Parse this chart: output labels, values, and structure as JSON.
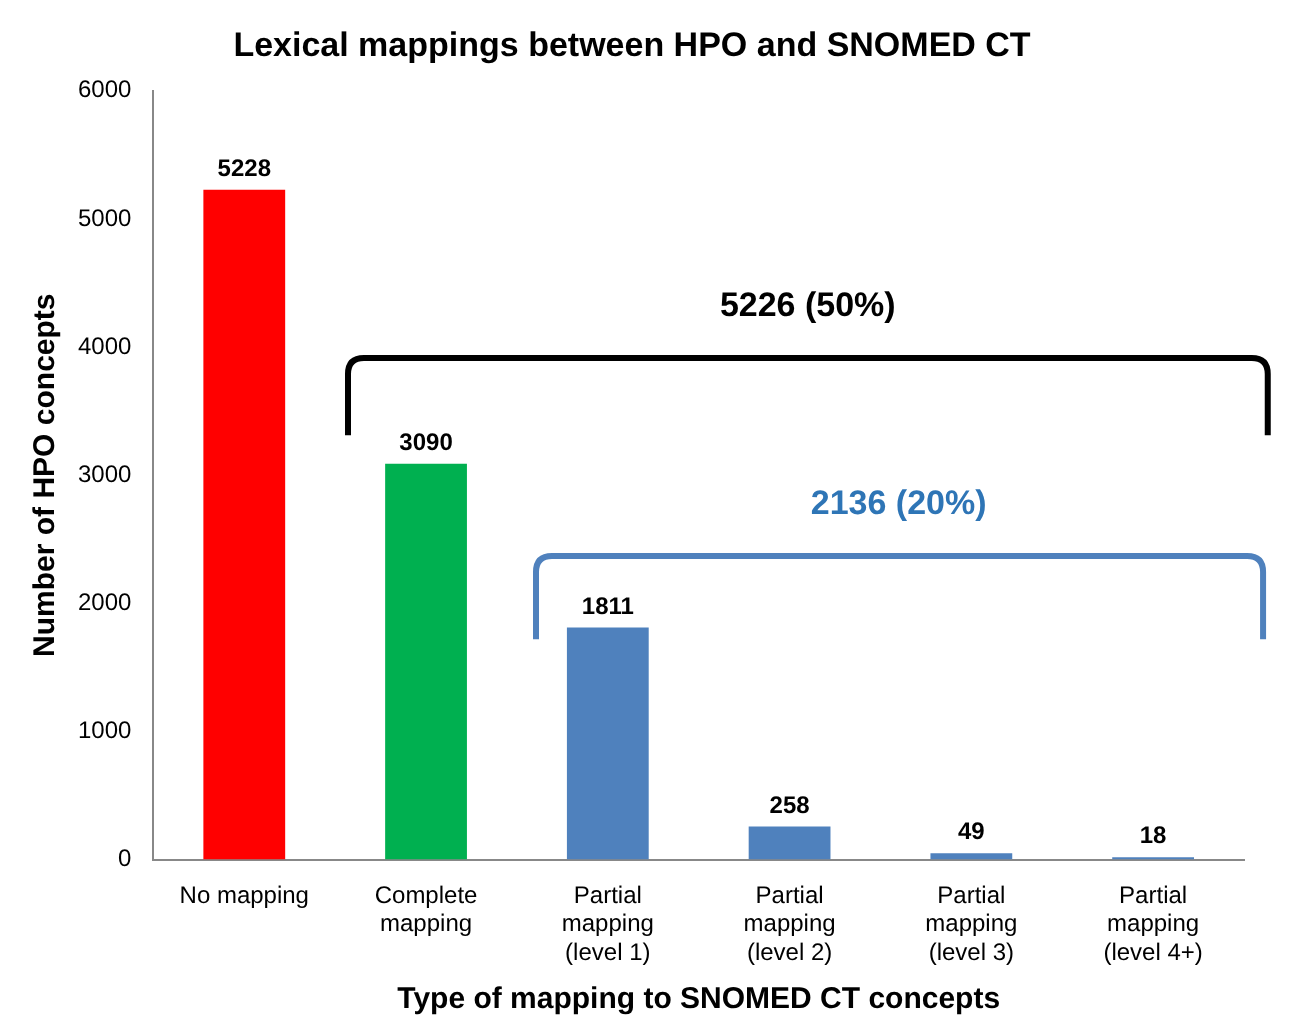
{
  "chart_data": {
    "type": "bar",
    "title": "Lexical mappings between HPO and SNOMED CT",
    "xlabel": "Type of mapping to SNOMED CT concepts",
    "ylabel": "Number of HPO concepts",
    "categories": [
      "No mapping",
      "Complete mapping",
      "Partial mapping (level 1)",
      "Partial mapping (level 2)",
      "Partial mapping (level 3)",
      "Partial mapping (level 4+)"
    ],
    "values": [
      5228,
      3090,
      1811,
      258,
      49,
      18
    ],
    "colors": [
      "#ff0000",
      "#00b050",
      "#4f81bd",
      "#4f81bd",
      "#4f81bd",
      "#4f81bd"
    ],
    "ylim": [
      0,
      6000
    ],
    "yticks": [
      0,
      1000,
      2000,
      3000,
      4000,
      5000,
      6000
    ],
    "grid": false,
    "legend": false,
    "data_labels": true,
    "annotations": [
      "5226 (50%)",
      "2136 (20%)"
    ]
  }
}
